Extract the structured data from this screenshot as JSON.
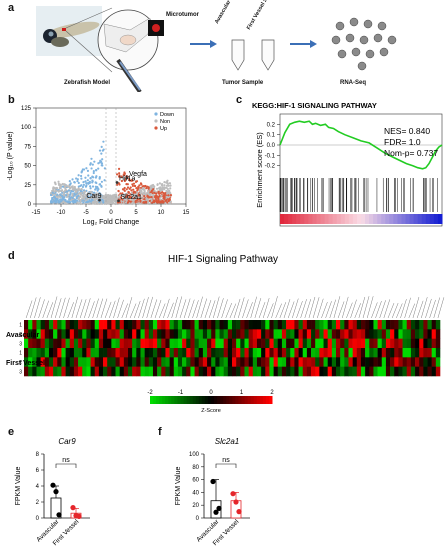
{
  "panel_labels": {
    "a": "a",
    "b": "b",
    "c": "c",
    "d": "d",
    "e": "e",
    "f": "f"
  },
  "panel_a": {
    "microtumor": "Microtumor",
    "zebrafish_model": "Zebrafish  Model",
    "tube_1": "Avascular",
    "tube_1_sub": "24h",
    "tube_2": "First Vessel",
    "tube_2_sub": "24h",
    "tumor_sample": "Tumor  Sample",
    "rna_seq": "RNA-Seq"
  },
  "colors": {
    "down": "#7fb4e0",
    "non": "#bdbdbd",
    "up": "#d9583b",
    "gsea_line": "#22cc22",
    "heat_low": "#00cc00",
    "heat_mid": "#000000",
    "heat_high": "#ff0000",
    "avascular_bar": "#000000",
    "first_vessel_bar": "#e5262b"
  },
  "chart_data": [
    {
      "type": "scatter",
      "panel": "b",
      "xlabel": "Log₂ Fold Change",
      "ylabel": "-Log₁₀ (P value)",
      "xlim": [
        -15,
        15
      ],
      "ylim": [
        0,
        125
      ],
      "xticks": [
        "-15",
        "-10",
        "-5",
        "0",
        "5",
        "10",
        "15"
      ],
      "yticks": [
        "0",
        "25",
        "50",
        "75",
        "100",
        "125"
      ],
      "legend": [
        "Down",
        "Non",
        "Up"
      ],
      "legend_position": "top-right",
      "annotations": [
        {
          "label": "Hif1a",
          "x": 1.2,
          "y": 28
        },
        {
          "label": "Vegfa",
          "x": 3.2,
          "y": 34
        },
        {
          "label": "Car9",
          "x": -2.3,
          "y": 5
        },
        {
          "label": "Slc2a1",
          "x": 1.5,
          "y": 4
        }
      ]
    },
    {
      "type": "line",
      "panel": "c",
      "title": "KEGG:HIF-1 SIGNALING PATHWAY",
      "ylabel": "Enrichment score (ES)",
      "ylim": [
        -0.3,
        0.3
      ],
      "yticks": [
        "0.2",
        "0.1",
        "0.0",
        "-0.1",
        "-0.2"
      ],
      "stats": {
        "nes": "NES= 0.840",
        "fdr": "FDR= 1.0",
        "nom_p": "Nom-p= 0.737"
      },
      "x": [
        0,
        0.03,
        0.06,
        0.09,
        0.12,
        0.15,
        0.18,
        0.2,
        0.22,
        0.25,
        0.28,
        0.3,
        0.33,
        0.36,
        0.4,
        0.45,
        0.5,
        0.55,
        0.6,
        0.65,
        0.7,
        0.74,
        0.78,
        0.82,
        0.85,
        0.88,
        0.9,
        0.92,
        0.94,
        0.96,
        0.98,
        1.0
      ],
      "es": [
        0,
        0.12,
        0.2,
        0.22,
        0.23,
        0.22,
        0.23,
        0.2,
        0.21,
        0.19,
        0.2,
        0.17,
        0.16,
        0.13,
        0.1,
        0.07,
        0.04,
        0.02,
        -0.03,
        -0.08,
        -0.12,
        -0.15,
        -0.18,
        -0.2,
        -0.22,
        -0.23,
        -0.22,
        -0.18,
        -0.12,
        -0.06,
        -0.02,
        0.0
      ]
    },
    {
      "type": "heatmap",
      "panel": "d",
      "title": "HIF-1 Signaling Pathway",
      "row_groups": [
        "Avascular",
        "First Vessel"
      ],
      "row_labels": [
        "1",
        "2",
        "3",
        "1",
        "2",
        "3"
      ],
      "columns": 100,
      "colorbar_label": "Z-Score",
      "colorbar_ticks": [
        "-2",
        "-1",
        "0",
        "1",
        "2"
      ],
      "colorbar_range": [
        -2,
        2
      ]
    },
    {
      "type": "bar",
      "panel": "e",
      "title": "Car9",
      "ylabel": "FPKM Value",
      "categories": [
        "Avascular",
        "First Vessel"
      ],
      "values": [
        2.5,
        0.6
      ],
      "errors": [
        1.5,
        0.6
      ],
      "points": [
        [
          4.1,
          3.3,
          0.4
        ],
        [
          1.3,
          0.3,
          0.2
        ]
      ],
      "ylim": [
        0,
        8
      ],
      "yticks": [
        "0",
        "2",
        "4",
        "6",
        "8"
      ],
      "significance": "ns"
    },
    {
      "type": "bar",
      "panel": "f",
      "title": "Slc2a1",
      "ylabel": "FPKM Value",
      "categories": [
        "Avascular",
        "First Vessel"
      ],
      "values": [
        27,
        27
      ],
      "errors": [
        33,
        13
      ],
      "points": [
        [
          57,
          9,
          15
        ],
        [
          38,
          25,
          10
        ]
      ],
      "ylim": [
        0,
        100
      ],
      "yticks": [
        "0",
        "20",
        "40",
        "60",
        "80",
        "100"
      ],
      "significance": "ns"
    }
  ]
}
